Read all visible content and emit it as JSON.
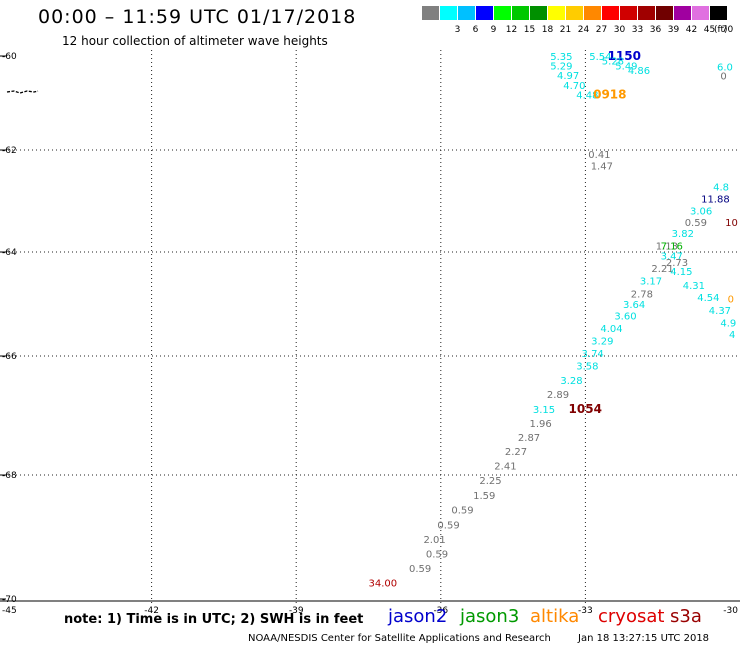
{
  "header": {
    "title": "00:00 – 11:59 UTC 01/17/2018",
    "subtitle": "12 hour collection of altimeter wave heights"
  },
  "scale": {
    "unit_label": "(ft)",
    "bins": [
      {
        "label": "",
        "color": "#808080"
      },
      {
        "label": "3",
        "color": "#00ffff"
      },
      {
        "label": "6",
        "color": "#00c0ff"
      },
      {
        "label": "9",
        "color": "#0000ff"
      },
      {
        "label": "12",
        "color": "#00ff00"
      },
      {
        "label": "15",
        "color": "#00c800"
      },
      {
        "label": "18",
        "color": "#009000"
      },
      {
        "label": "21",
        "color": "#ffff00"
      },
      {
        "label": "24",
        "color": "#ffcc00"
      },
      {
        "label": "27",
        "color": "#ff8800"
      },
      {
        "label": "30",
        "color": "#ff0000"
      },
      {
        "label": "33",
        "color": "#d00000"
      },
      {
        "label": "36",
        "color": "#a00000"
      },
      {
        "label": "39",
        "color": "#700000"
      },
      {
        "label": "42",
        "color": "#a000a0"
      },
      {
        "label": "45",
        "color": "#e070e0"
      },
      {
        "label": "70",
        "color": "#000000"
      }
    ]
  },
  "axes": {
    "lat_labels": [
      "-60",
      "-62",
      "-64",
      "-66",
      "-68",
      "-70"
    ],
    "lon_labels": [
      "-45",
      "-42",
      "-39",
      "-36",
      "-33",
      "-30"
    ],
    "grid": "dotted"
  },
  "chart_data": {
    "type": "scatter",
    "xlim": [
      -45,
      -30
    ],
    "ylim": [
      -70,
      -60
    ],
    "colors": {
      "gray": "#707070",
      "cyan": "#00e0e0",
      "orange": "#ff9900",
      "blue": "#0000cc",
      "darkred": "#800000",
      "green": "#00b000",
      "navy": "#000080",
      "red": "#b00000"
    },
    "points": [
      {
        "lon": -33.73,
        "lat": -60.0,
        "text": "5.35",
        "color": "cyan"
      },
      {
        "lon": -33.73,
        "lat": -60.2,
        "text": "5.29",
        "color": "cyan"
      },
      {
        "lon": -33.59,
        "lat": -60.4,
        "text": "4.97",
        "color": "cyan"
      },
      {
        "lon": -33.46,
        "lat": -60.62,
        "text": "4.70",
        "color": "cyan"
      },
      {
        "lon": -33.19,
        "lat": -60.82,
        "text": "4.48",
        "color": "cyan"
      },
      {
        "lon": -32.84,
        "lat": -60.82,
        "text": "0918",
        "color": "orange"
      },
      {
        "lon": -32.92,
        "lat": -59.96,
        "text": "5.54",
        "color": "cyan"
      },
      {
        "lon": -32.54,
        "lat": -59.96,
        "text": "1150",
        "color": "blue"
      },
      {
        "lon": -32.66,
        "lat": -60.1,
        "text": "5.28",
        "color": "cyan"
      },
      {
        "lon": -32.38,
        "lat": -60.2,
        "text": "5.49",
        "color": "cyan"
      },
      {
        "lon": -32.12,
        "lat": -60.3,
        "text": "4.86",
        "color": "cyan"
      },
      {
        "lon": -30.27,
        "lat": -60.22,
        "text": "6.0",
        "color": "cyan"
      },
      {
        "lon": -30.2,
        "lat": -60.42,
        "text": "0",
        "color": "gray"
      },
      {
        "lon": -32.94,
        "lat": -62.08,
        "text": "0.41",
        "color": "gray"
      },
      {
        "lon": -32.89,
        "lat": -62.3,
        "text": "1.47",
        "color": "gray"
      },
      {
        "lon": -30.35,
        "lat": -62.72,
        "text": "4.8",
        "color": "cyan"
      },
      {
        "lon": -30.6,
        "lat": -62.95,
        "text": "11.88",
        "color": "navy"
      },
      {
        "lon": -30.83,
        "lat": -63.19,
        "text": "3.06",
        "color": "cyan"
      },
      {
        "lon": -30.1,
        "lat": -63.41,
        "text": "10",
        "color": "darkred"
      },
      {
        "lon": -30.94,
        "lat": -63.41,
        "text": "0.59",
        "color": "gray"
      },
      {
        "lon": -31.21,
        "lat": -63.63,
        "text": "3.82",
        "color": "cyan"
      },
      {
        "lon": -31.54,
        "lat": -63.87,
        "text": "1.13",
        "color": "gray"
      },
      {
        "lon": -31.44,
        "lat": -63.87,
        "text": "7.16",
        "color": "green"
      },
      {
        "lon": -31.44,
        "lat": -64.07,
        "text": "3.47",
        "color": "cyan"
      },
      {
        "lon": -31.33,
        "lat": -64.19,
        "text": "2.73",
        "color": "gray"
      },
      {
        "lon": -31.63,
        "lat": -64.31,
        "text": "2.21",
        "color": "gray"
      },
      {
        "lon": -31.24,
        "lat": -64.37,
        "text": "4.15",
        "color": "cyan"
      },
      {
        "lon": -31.87,
        "lat": -64.55,
        "text": "3.17",
        "color": "cyan"
      },
      {
        "lon": -30.98,
        "lat": -64.63,
        "text": "4.31",
        "color": "cyan"
      },
      {
        "lon": -32.06,
        "lat": -64.8,
        "text": "2.78",
        "color": "gray"
      },
      {
        "lon": -30.68,
        "lat": -64.87,
        "text": "4.54",
        "color": "cyan"
      },
      {
        "lon": -30.05,
        "lat": -64.89,
        "text": "0",
        "color": "orange"
      },
      {
        "lon": -32.22,
        "lat": -65.0,
        "text": "3.64",
        "color": "cyan"
      },
      {
        "lon": -30.44,
        "lat": -65.12,
        "text": "4.37",
        "color": "cyan"
      },
      {
        "lon": -32.4,
        "lat": -65.22,
        "text": "3.60",
        "color": "cyan"
      },
      {
        "lon": -30.2,
        "lat": -65.36,
        "text": "4.9",
        "color": "cyan"
      },
      {
        "lon": -32.69,
        "lat": -65.46,
        "text": "4.04",
        "color": "cyan"
      },
      {
        "lon": -30.02,
        "lat": -65.58,
        "text": "4",
        "color": "cyan"
      },
      {
        "lon": -32.88,
        "lat": -65.7,
        "text": "3.29",
        "color": "cyan"
      },
      {
        "lon": -33.08,
        "lat": -65.94,
        "text": "3.74",
        "color": "cyan"
      },
      {
        "lon": -33.19,
        "lat": -66.16,
        "text": "3.58",
        "color": "cyan"
      },
      {
        "lon": -33.52,
        "lat": -66.4,
        "text": "3.28",
        "color": "cyan"
      },
      {
        "lon": -33.8,
        "lat": -66.64,
        "text": "2.89",
        "color": "gray"
      },
      {
        "lon": -34.09,
        "lat": -66.89,
        "text": "3.15",
        "color": "cyan"
      },
      {
        "lon": -33.35,
        "lat": -66.89,
        "text": "1054",
        "color": "darkred"
      },
      {
        "lon": -34.16,
        "lat": -67.13,
        "text": "1.96",
        "color": "gray"
      },
      {
        "lon": -34.4,
        "lat": -67.36,
        "text": "2.87",
        "color": "gray"
      },
      {
        "lon": -34.67,
        "lat": -67.6,
        "text": "2.27",
        "color": "gray"
      },
      {
        "lon": -34.89,
        "lat": -67.84,
        "text": "2.41",
        "color": "gray"
      },
      {
        "lon": -35.2,
        "lat": -68.08,
        "text": "2.25",
        "color": "gray"
      },
      {
        "lon": -35.33,
        "lat": -68.32,
        "text": "1.59",
        "color": "gray"
      },
      {
        "lon": -35.78,
        "lat": -68.56,
        "text": "0.59",
        "color": "gray"
      },
      {
        "lon": -36.07,
        "lat": -68.8,
        "text": "0.59",
        "color": "gray"
      },
      {
        "lon": -36.36,
        "lat": -69.03,
        "text": "2.01",
        "color": "gray"
      },
      {
        "lon": -36.31,
        "lat": -69.27,
        "text": "0.59",
        "color": "gray"
      },
      {
        "lon": -36.66,
        "lat": -69.5,
        "text": "0.59",
        "color": "gray"
      },
      {
        "lon": -37.5,
        "lat": -69.73,
        "text": "34.00",
        "color": "red"
      }
    ]
  },
  "footer": {
    "note": "note: 1) Time is in UTC; 2) SWH is in feet",
    "satellites": [
      {
        "name": "jason2",
        "color": "#0000cc"
      },
      {
        "name": "jason3",
        "color": "#009900"
      },
      {
        "name": "altika",
        "color": "#ff8800"
      },
      {
        "name": "cryosat",
        "color": "#dd0000"
      },
      {
        "name": "s3a",
        "color": "#990000"
      }
    ],
    "credit": "NOAA/NESDIS Center for Satellite Applications and Research",
    "timestamp": "Jan 18 13:27:15 UTC 2018"
  }
}
